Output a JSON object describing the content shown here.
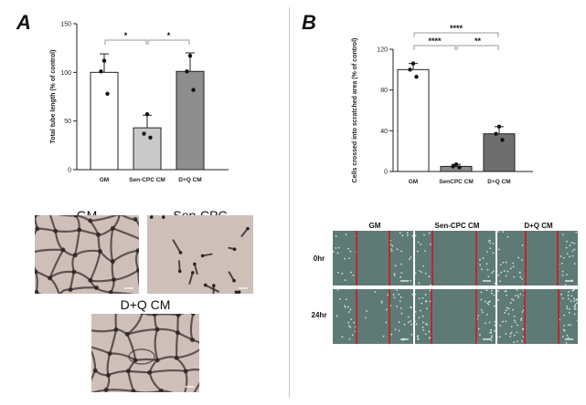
{
  "panels": {
    "a": "A",
    "b": "B"
  },
  "colors": {
    "gm_bar": "#ffffff",
    "sencpc_bar_a": "#c9c9c9",
    "sencpc_bar_b": "#888888",
    "dq_bar_a": "#8e8e8e",
    "dq_bar_b": "#6e6e6e",
    "scratch_line": "#d0141e",
    "bracket": "#9a9a9a"
  },
  "chart_data": [
    {
      "type": "bar",
      "panel": "A",
      "categories": [
        "GM",
        "Sen-CPC CM",
        "D+Q CM"
      ],
      "values": [
        100,
        43,
        101
      ],
      "errors": [
        19,
        13,
        19
      ],
      "points": [
        [
          112,
          101,
          78
        ],
        [
          57,
          37,
          33
        ],
        [
          117,
          101,
          82
        ]
      ],
      "ylabel": "Total tube length (% of control)",
      "ylim": [
        0,
        150
      ],
      "yticks": [
        0,
        50,
        100,
        150
      ],
      "significance": [
        {
          "from": 0,
          "to": 1,
          "label": "*"
        },
        {
          "from": 1,
          "to": 2,
          "label": "*"
        }
      ]
    },
    {
      "type": "bar",
      "panel": "B",
      "categories": [
        "GM",
        "SenCPC CM",
        "D+Q CM"
      ],
      "values": [
        100,
        5,
        37
      ],
      "errors": [
        6,
        2,
        7
      ],
      "points": [
        [
          106,
          100,
          93
        ],
        [
          7,
          5,
          4
        ],
        [
          44,
          37,
          31
        ]
      ],
      "ylabel": "Cells crossed into scratched area (% of control)",
      "ylim": [
        0,
        120
      ],
      "yticks": [
        0,
        40,
        80,
        120
      ],
      "significance": [
        {
          "from": 0,
          "to": 2,
          "label": "****"
        },
        {
          "from": 0,
          "to": 1,
          "label": "****"
        },
        {
          "from": 1,
          "to": 2,
          "label": "**"
        }
      ]
    }
  ],
  "tube_images": {
    "gm": "GM",
    "sen_cpc": "Sen-CPC",
    "dq_cm": "D+Q CM"
  },
  "scratch_assay": {
    "columns": [
      "GM",
      "Sen-CPC CM",
      "D+Q CM"
    ],
    "rows": [
      "0hr",
      "24hr"
    ]
  }
}
